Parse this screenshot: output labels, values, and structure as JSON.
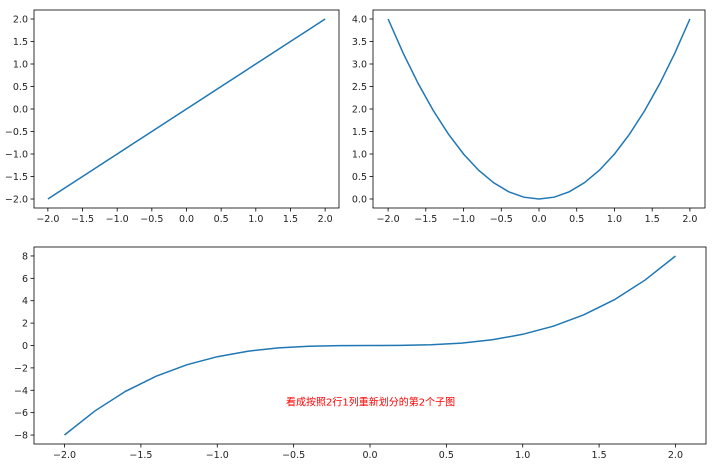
{
  "chart_data": [
    {
      "type": "line",
      "subplot": "top-left",
      "x": [
        -2,
        -1.8,
        -1.6,
        -1.4,
        -1.2,
        -1,
        -0.8,
        -0.6,
        -0.4,
        -0.2,
        0,
        0.2,
        0.4,
        0.6,
        0.8,
        1,
        1.2,
        1.4,
        1.6,
        1.8,
        2
      ],
      "y": [
        -2,
        -1.8,
        -1.6,
        -1.4,
        -1.2,
        -1,
        -0.8,
        -0.6,
        -0.4,
        -0.2,
        0,
        0.2,
        0.4,
        0.6,
        0.8,
        1,
        1.2,
        1.4,
        1.6,
        1.8,
        2
      ],
      "xlim": [
        -2.2,
        2.2
      ],
      "ylim": [
        -2.2,
        2.2
      ],
      "xticks": [
        "-2.0",
        "-1.5",
        "-1.0",
        "-0.5",
        "0.0",
        "0.5",
        "1.0",
        "1.5",
        "2.0"
      ],
      "yticks": [
        "-2.0",
        "-1.5",
        "-1.0",
        "-0.5",
        "0.0",
        "0.5",
        "1.0",
        "1.5",
        "2.0"
      ],
      "color": "#1f77b4"
    },
    {
      "type": "line",
      "subplot": "top-right",
      "x": [
        -2,
        -1.8,
        -1.6,
        -1.4,
        -1.2,
        -1,
        -0.8,
        -0.6,
        -0.4,
        -0.2,
        0,
        0.2,
        0.4,
        0.6,
        0.8,
        1,
        1.2,
        1.4,
        1.6,
        1.8,
        2
      ],
      "y": [
        4,
        3.24,
        2.56,
        1.96,
        1.44,
        1,
        0.64,
        0.36,
        0.16,
        0.04,
        0,
        0.04,
        0.16,
        0.36,
        0.64,
        1,
        1.44,
        1.96,
        2.56,
        3.24,
        4
      ],
      "xlim": [
        -2.2,
        2.2
      ],
      "ylim": [
        -0.2,
        4.2
      ],
      "xticks": [
        "-2.0",
        "-1.5",
        "-1.0",
        "-0.5",
        "0.0",
        "0.5",
        "1.0",
        "1.5",
        "2.0"
      ],
      "yticks": [
        "0.0",
        "0.5",
        "1.0",
        "1.5",
        "2.0",
        "2.5",
        "3.0",
        "3.5",
        "4.0"
      ],
      "color": "#1f77b4"
    },
    {
      "type": "line",
      "subplot": "bottom",
      "x": [
        -2,
        -1.8,
        -1.6,
        -1.4,
        -1.2,
        -1,
        -0.8,
        -0.6,
        -0.4,
        -0.2,
        0,
        0.2,
        0.4,
        0.6,
        0.8,
        1,
        1.2,
        1.4,
        1.6,
        1.8,
        2
      ],
      "y": [
        -8,
        -5.832,
        -4.096,
        -2.744,
        -1.728,
        -1,
        -0.512,
        -0.216,
        -0.064,
        -0.008,
        0,
        0.008,
        0.064,
        0.216,
        0.512,
        1,
        1.728,
        2.744,
        4.096,
        5.832,
        8
      ],
      "xlim": [
        -2.2,
        2.2
      ],
      "ylim": [
        -8.8,
        8.8
      ],
      "xticks": [
        "-2.0",
        "-1.5",
        "-1.0",
        "-0.5",
        "0.0",
        "0.5",
        "1.0",
        "1.5",
        "2.0"
      ],
      "yticks": [
        "-8",
        "-6",
        "-4",
        "-2",
        "0",
        "2",
        "4",
        "6",
        "8"
      ],
      "color": "#1f77b4",
      "annotation": {
        "text": "看成按照2行1列重新划分的第2个子图",
        "x": -0.55,
        "y": -5,
        "color": "#ff0000"
      }
    }
  ]
}
